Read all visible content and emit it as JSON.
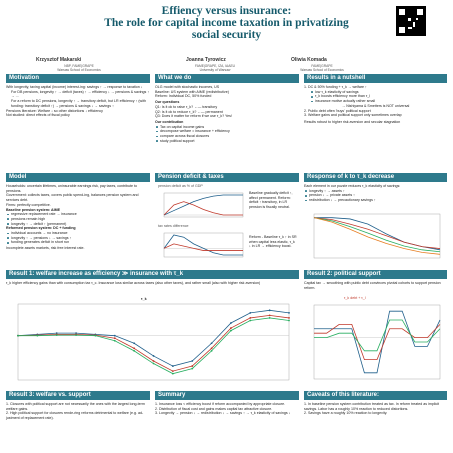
{
  "title": {
    "line1": "Effiency versus insurance:",
    "line2": "The role for capital income taxation in privatizing",
    "line3": "social security"
  },
  "authors": [
    {
      "name": "Krzysztof Makarski",
      "affil1": "NBP, FAME|GRAPE",
      "affil2": "Warsaw School of Economics"
    },
    {
      "name": "Joanna Tyrowicz",
      "affil1": "FAME|GRAPE, IZA, IAAEU",
      "affil2": "University of Warsaw"
    },
    {
      "name": "Oliwia Komada",
      "affil1": "FAME|GRAPE",
      "affil2": "Warsaw School of Economics"
    }
  ],
  "sections": {
    "motivation": {
      "header": "Motivation",
      "intro": "With longevity, taxing capital (income) interest-ing: savings ↑ → response to taxation ↓",
      "items": [
        "For DB pensions, longevity ↑ → deficit (taxes) ↑ → efficiency ↓ → pensions & savings ↑ → ...",
        "For a reform to DC pensions, longevity ↑ → transitory deficit, but LR efficiency ↑ (with funding: transitory deficit ↑) → pensions & savings ↓ → savings ↑"
      ],
      "pension_lit": "Pensions literature: Welfare ↓ so other distortions ↓ efficiency",
      "not_studied": "Not studied: direct effects of fiscal policy"
    },
    "whatwedo": {
      "header": "What we do",
      "lines": [
        "OLG model with stochastic incomes, US",
        "Baseline: US system with AIME (redistributive)",
        "Reform: Individual DC, 50% funded"
      ],
      "questions_title": "Our questions",
      "questions": [
        "Q1: Is it ok to raise τ_k? ←— transitory",
        "Q2: Is it ok to reduce τ_k? ←— permanent",
        "Q3: Does it matter for reform if we use τ_k? Yes!"
      ],
      "contribution_title": "Our contribution",
      "contribution": [
        "Tax on capital income gains",
        "decompose welfare = insurance + efficiency",
        "compare across fiscal closures",
        "study political support"
      ]
    },
    "results_nutshell": {
      "header": "Results in a nutshell",
      "items": [
        "1. DC & 50% funding + τ_k → welfare ↑",
        "low τ_k elasticity of savings",
        "τ_k boosts efficiency more than τ_l",
        "insurance motive actually rather small",
        "→ Nishiyama & Smetters is NOT universal",
        "2. Public debt often 'buys' political support",
        "3. Welfare gains and political support only sometimes overlap"
      ],
      "robust": "Results robust to higher risk aversion and secular stagnation"
    },
    "model": {
      "header": "Model",
      "lines": [
        "Households: uncertain lifetimes, uninsurable earnings risk, pay taxes, contribute to pensions.",
        "Government: collects taxes, covers public spend-ing, balances pension system and services debt.",
        "Firms: perfectly competitive."
      ],
      "baseline_title": "Baseline pension system: AIME",
      "baseline": [
        "regressive replacement rate → insurance",
        "pensions remain high",
        "longevity ↑ → deficit ↑ (permanent)"
      ],
      "reform_title": "Reformed pension system: DC + funding",
      "reform": [
        "individual accounts → no insurance",
        "longevity ↑ → pensions ↓ → savings ↑",
        "funding generates deficit in short run"
      ],
      "incomplete": "Incomplete assets markets, risk free interest rate."
    },
    "pension_deficit": {
      "header": "Pension deficit & taxes",
      "chart1_label": "pension deficit as % of GDP",
      "chart2_label": "tax rates difference",
      "note1": "Baseline gradually deficit ↑, affect permanent. Reform: deficit ↑ transitory, in LR pension is fiscally neutral.",
      "note2": "Reform - Baseline τ_k ↑ in SR when capital less elastic, τ_k ↓ in LR → efficiency boost."
    },
    "response": {
      "header": "Response of k to τ_k decrease",
      "intro": "Each element in our puzzle reduces τ_k elasticity of savings:",
      "items": [
        "longevity ↑ → assets ↑",
        "pension ↓ → private assets ↑",
        "redistribution ↓ → precautionary savings ↑"
      ]
    },
    "result1": {
      "header": "Result 1: welfare increase as efficiency ≫ insurance with τ_k",
      "text": "τ_k higher efficiency gains than with consumption tax τ_c. Insurance loss similar across taxes (also other taxes), and rather small (also with higher risk aversion)",
      "chart_title": "τ_k"
    },
    "result2": {
      "header": "Result 2: political support",
      "text": "Capital tax → smoothing with public debt convinces pivotal cohorts to support pension reform.",
      "chart_label": "τ_k debt + τ_l"
    },
    "result3": {
      "header": "Result 3: welfare vs. support",
      "items": [
        "1. Closures with political support are not necessarily the ones with the largest long-term welfare gains.",
        "2. High political support for closures rende-ring reforms detrimental to welfare (e.g. ad-justment of replacement rate)."
      ]
    },
    "summary": {
      "header": "Summary",
      "items": [
        "1. Insurance loss < efficiency boost if reform accompanied by appropriate closure.",
        "2. Distribution of fiscal cost and gains makes capital tax attractive closure.",
        "3. Longevity → pension ↓ → redistribution ↓ → savings ↑ → τ_k elasticity of savings ↓"
      ]
    },
    "caveats": {
      "header": "Caveats of this literature:",
      "items": [
        "1. In baseline pension system contribution treated as tax. In reform treated as implicit savings. Labor has a roughly 10% reaction to reduced distortions.",
        "2. Savings have a roughly 10% reaction to longevity."
      ]
    }
  },
  "colors": {
    "header_bg": "#2e7a8c",
    "title": "#155a6b",
    "accent_red": "#c0392b"
  },
  "chart_data": [
    {
      "type": "line",
      "series": [
        {
          "values": [
            0.0,
            0.4,
            0.8,
            1.2,
            1.5,
            1.7,
            1.8,
            1.8,
            1.8
          ]
        },
        {
          "values": [
            0.0,
            0.9,
            1.2,
            0.9,
            0.5,
            0.2,
            0.0,
            0.0,
            0.0
          ]
        }
      ]
    },
    {
      "type": "line",
      "series": [
        {
          "values": [
            0.0,
            0.6,
            0.5,
            0.2,
            0.0,
            -0.2,
            -0.3,
            -0.3,
            -0.3
          ]
        },
        {
          "values": [
            0.0,
            0.2,
            0.1,
            0.0,
            -0.1,
            -0.1,
            -0.1,
            -0.1,
            -0.1
          ]
        }
      ]
    },
    {
      "type": "line",
      "series": [
        {
          "values": [
            1.0,
            1.0,
            0.98,
            0.9,
            0.75,
            0.62,
            0.55,
            0.5
          ]
        },
        {
          "values": [
            1.0,
            0.97,
            0.9,
            0.82,
            0.72,
            0.62,
            0.55,
            0.52
          ]
        },
        {
          "values": [
            1.0,
            0.95,
            0.86,
            0.76,
            0.65,
            0.56,
            0.5,
            0.47
          ]
        },
        {
          "values": [
            1.0,
            0.93,
            0.82,
            0.7,
            0.6,
            0.52,
            0.46,
            0.43
          ]
        }
      ]
    },
    {
      "type": "line",
      "series": [
        {
          "values": [
            0.0,
            0.05,
            0.1,
            0.1,
            0.05,
            0.0,
            -0.3,
            -0.8,
            -1.2,
            -1.0,
            -0.3,
            0.5,
            0.9,
            1.0,
            0.9
          ]
        },
        {
          "values": [
            0.0,
            0.02,
            0.05,
            0.05,
            0.02,
            -0.1,
            -0.5,
            -1.0,
            -1.4,
            -1.2,
            -0.5,
            0.3,
            0.7,
            0.8,
            0.7
          ]
        },
        {
          "values": [
            0.0,
            0.0,
            0.02,
            0.02,
            0.0,
            -0.2,
            -0.6,
            -1.1,
            -1.5,
            -1.3,
            -0.6,
            0.2,
            0.6,
            0.7,
            0.6
          ]
        }
      ]
    },
    {
      "type": "line",
      "series": [
        {
          "values": [
            0.2,
            0.2,
            0.2,
            0.2,
            -0.8,
            -0.8,
            0.6,
            0.6,
            -0.2,
            -0.2,
            0.4
          ]
        },
        {
          "values": [
            0.1,
            0.1,
            0.3,
            0.3,
            -0.5,
            -0.5,
            0.2,
            0.2,
            0.0,
            0.0,
            0.3
          ]
        },
        {
          "values": [
            0.0,
            0.0,
            0.1,
            0.1,
            -0.3,
            -0.3,
            0.4,
            0.4,
            -0.1,
            -0.1,
            0.2
          ]
        }
      ]
    }
  ]
}
